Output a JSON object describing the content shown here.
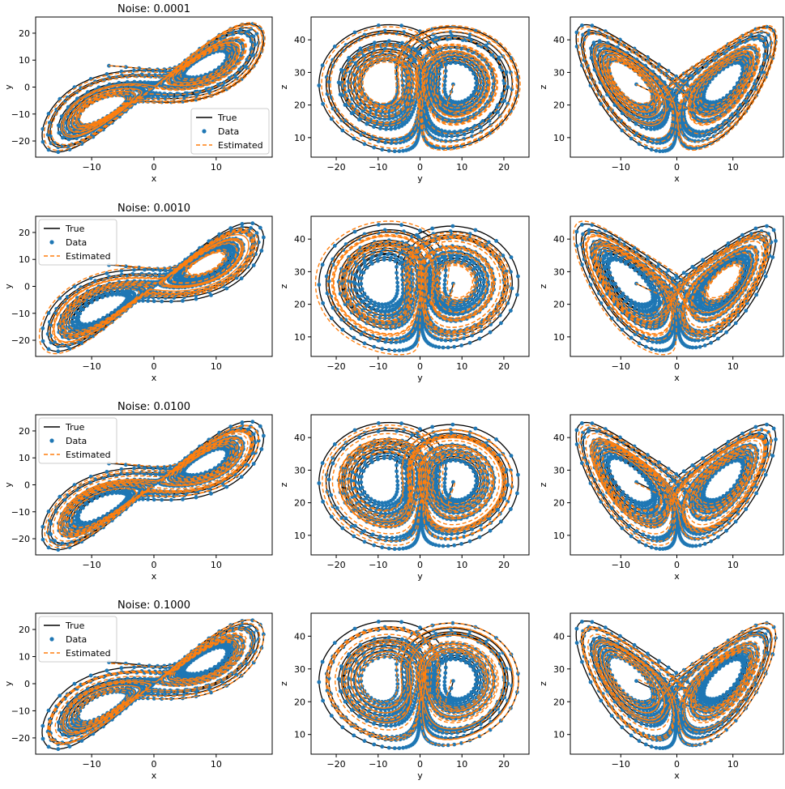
{
  "figure": {
    "rows": 4,
    "cols": 3,
    "colors": {
      "true": "#000000",
      "data": "#1f77b4",
      "estimated": "#ff7f0e"
    }
  },
  "chart_data": [
    {
      "type": "scatter",
      "panel": "r0-c0",
      "title": "Noise: 0.0001",
      "xlabel": "x",
      "ylabel": "y",
      "xlim": [
        -19,
        19
      ],
      "ylim": [
        -26,
        26
      ],
      "xticks": [
        -10,
        0,
        10
      ],
      "yticks": [
        -20,
        -10,
        0,
        10,
        20
      ],
      "grid": false,
      "projection": "x-y",
      "legend": {
        "placement": "lower right",
        "entries": [
          "True",
          "Data",
          "Estimated"
        ]
      },
      "series": [
        {
          "name": "True",
          "style": "solid line"
        },
        {
          "name": "Data",
          "style": "dots"
        },
        {
          "name": "Estimated",
          "style": "dashed line"
        }
      ]
    },
    {
      "type": "scatter",
      "panel": "r0-c1",
      "title": "",
      "xlabel": "y",
      "ylabel": "z",
      "xlim": [
        -26,
        26
      ],
      "ylim": [
        4,
        47
      ],
      "xticks": [
        -20,
        -10,
        0,
        10,
        20
      ],
      "yticks": [
        10,
        20,
        30,
        40
      ],
      "grid": false,
      "projection": "y-z",
      "series": [
        {
          "name": "True",
          "style": "solid line"
        },
        {
          "name": "Data",
          "style": "dots"
        },
        {
          "name": "Estimated",
          "style": "dashed line"
        }
      ]
    },
    {
      "type": "scatter",
      "panel": "r0-c2",
      "title": "",
      "xlabel": "x",
      "ylabel": "z",
      "xlim": [
        -19,
        19
      ],
      "ylim": [
        4,
        47
      ],
      "xticks": [
        -10,
        0,
        10
      ],
      "yticks": [
        10,
        20,
        30,
        40
      ],
      "grid": false,
      "projection": "x-z",
      "series": [
        {
          "name": "True",
          "style": "solid line"
        },
        {
          "name": "Data",
          "style": "dots"
        },
        {
          "name": "Estimated",
          "style": "dashed line"
        }
      ]
    },
    {
      "type": "scatter",
      "panel": "r1-c0",
      "title": "Noise: 0.0010",
      "xlabel": "x",
      "ylabel": "y",
      "xlim": [
        -19,
        19
      ],
      "ylim": [
        -26,
        26
      ],
      "xticks": [
        -10,
        0,
        10
      ],
      "yticks": [
        -20,
        -10,
        0,
        10,
        20
      ],
      "grid": false,
      "projection": "x-y",
      "legend": {
        "placement": "upper left",
        "entries": [
          "True",
          "Data",
          "Estimated"
        ]
      },
      "series": [
        {
          "name": "True",
          "style": "solid line"
        },
        {
          "name": "Data",
          "style": "dots"
        },
        {
          "name": "Estimated",
          "style": "dashed line"
        }
      ]
    },
    {
      "type": "scatter",
      "panel": "r1-c1",
      "title": "",
      "xlabel": "y",
      "ylabel": "z",
      "xlim": [
        -26,
        26
      ],
      "ylim": [
        4,
        47
      ],
      "xticks": [
        -20,
        -10,
        0,
        10,
        20
      ],
      "yticks": [
        10,
        20,
        30,
        40
      ],
      "grid": false,
      "projection": "y-z",
      "series": [
        {
          "name": "True",
          "style": "solid line"
        },
        {
          "name": "Data",
          "style": "dots"
        },
        {
          "name": "Estimated",
          "style": "dashed line"
        }
      ]
    },
    {
      "type": "scatter",
      "panel": "r1-c2",
      "title": "",
      "xlabel": "x",
      "ylabel": "z",
      "xlim": [
        -19,
        19
      ],
      "ylim": [
        4,
        47
      ],
      "xticks": [
        -10,
        0,
        10
      ],
      "yticks": [
        10,
        20,
        30,
        40
      ],
      "grid": false,
      "projection": "x-z",
      "series": [
        {
          "name": "True",
          "style": "solid line"
        },
        {
          "name": "Data",
          "style": "dots"
        },
        {
          "name": "Estimated",
          "style": "dashed line"
        }
      ]
    },
    {
      "type": "scatter",
      "panel": "r2-c0",
      "title": "Noise: 0.0100",
      "xlabel": "x",
      "ylabel": "y",
      "xlim": [
        -19,
        19
      ],
      "ylim": [
        -26,
        26
      ],
      "xticks": [
        -10,
        0,
        10
      ],
      "yticks": [
        -20,
        -10,
        0,
        10,
        20
      ],
      "grid": false,
      "projection": "x-y",
      "legend": {
        "placement": "upper left",
        "entries": [
          "True",
          "Data",
          "Estimated"
        ]
      },
      "series": [
        {
          "name": "True",
          "style": "solid line"
        },
        {
          "name": "Data",
          "style": "dots"
        },
        {
          "name": "Estimated",
          "style": "dashed line"
        }
      ]
    },
    {
      "type": "scatter",
      "panel": "r2-c1",
      "title": "",
      "xlabel": "y",
      "ylabel": "z",
      "xlim": [
        -26,
        26
      ],
      "ylim": [
        4,
        47
      ],
      "xticks": [
        -20,
        -10,
        0,
        10,
        20
      ],
      "yticks": [
        10,
        20,
        30,
        40
      ],
      "grid": false,
      "projection": "y-z",
      "series": [
        {
          "name": "True",
          "style": "solid line"
        },
        {
          "name": "Data",
          "style": "dots"
        },
        {
          "name": "Estimated",
          "style": "dashed line"
        }
      ]
    },
    {
      "type": "scatter",
      "panel": "r2-c2",
      "title": "",
      "xlabel": "x",
      "ylabel": "z",
      "xlim": [
        -19,
        19
      ],
      "ylim": [
        4,
        47
      ],
      "xticks": [
        -10,
        0,
        10
      ],
      "yticks": [
        10,
        20,
        30,
        40
      ],
      "grid": false,
      "projection": "x-z",
      "series": [
        {
          "name": "True",
          "style": "solid line"
        },
        {
          "name": "Data",
          "style": "dots"
        },
        {
          "name": "Estimated",
          "style": "dashed line"
        }
      ]
    },
    {
      "type": "scatter",
      "panel": "r3-c0",
      "title": "Noise: 0.1000",
      "xlabel": "x",
      "ylabel": "y",
      "xlim": [
        -19,
        19
      ],
      "ylim": [
        -26,
        26
      ],
      "xticks": [
        -10,
        0,
        10
      ],
      "yticks": [
        -20,
        -10,
        0,
        10,
        20
      ],
      "grid": false,
      "projection": "x-y",
      "legend": {
        "placement": "upper left",
        "entries": [
          "True",
          "Data",
          "Estimated"
        ]
      },
      "series": [
        {
          "name": "True",
          "style": "solid line"
        },
        {
          "name": "Data",
          "style": "dots"
        },
        {
          "name": "Estimated",
          "style": "dashed line"
        }
      ]
    },
    {
      "type": "scatter",
      "panel": "r3-c1",
      "title": "",
      "xlabel": "y",
      "ylabel": "z",
      "xlim": [
        -26,
        26
      ],
      "ylim": [
        4,
        47
      ],
      "xticks": [
        -20,
        -10,
        0,
        10,
        20
      ],
      "yticks": [
        10,
        20,
        30,
        40
      ],
      "grid": false,
      "projection": "y-z",
      "series": [
        {
          "name": "True",
          "style": "solid line"
        },
        {
          "name": "Data",
          "style": "dots"
        },
        {
          "name": "Estimated",
          "style": "dashed line"
        }
      ]
    },
    {
      "type": "scatter",
      "panel": "r3-c2",
      "title": "",
      "xlabel": "x",
      "ylabel": "z",
      "xlim": [
        -19,
        19
      ],
      "ylim": [
        4,
        47
      ],
      "xticks": [
        -10,
        0,
        10
      ],
      "yticks": [
        10,
        20,
        30,
        40
      ],
      "grid": false,
      "projection": "x-z",
      "series": [
        {
          "name": "True",
          "style": "solid line"
        },
        {
          "name": "Data",
          "style": "dots"
        },
        {
          "name": "Estimated",
          "style": "dashed line"
        }
      ]
    }
  ]
}
